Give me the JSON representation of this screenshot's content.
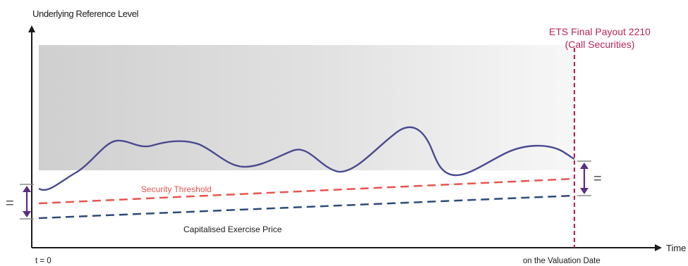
{
  "labels": {
    "y_axis": "Underlying Reference Level",
    "x_axis": "Time",
    "t0": "t = 0",
    "valuation_date": "on the Valuation Date",
    "final_payout_line1": "ETS Final Payout 2210",
    "final_payout_line2": "(Call Securities)",
    "security_threshold": "Security Threshold",
    "capitalised_exercise_price": "Capitalised Exercise Price",
    "equals_left": "=",
    "equals_right": "="
  },
  "colors": {
    "axis": "#1a1a1a",
    "underlying_line": "#4a4a90",
    "security_threshold": "#e8544e",
    "exercise_price": "#2e4a7a",
    "final_payout": "#b5245a",
    "bracket": "#5a2d82",
    "band_top": "#d0d0d0",
    "band_bottom": "#f4f4f4"
  }
}
